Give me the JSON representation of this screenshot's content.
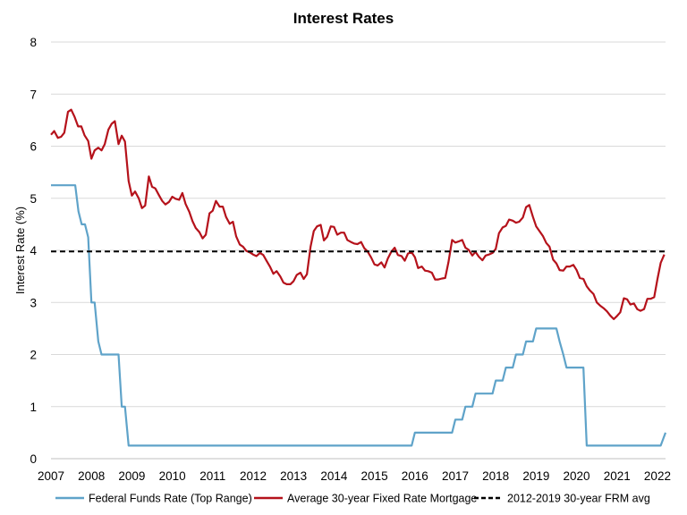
{
  "chart_data": {
    "type": "line",
    "title": "Interest Rates",
    "xlabel": "",
    "ylabel": "Interest Rate (%)",
    "xlim": [
      2007,
      2022.2
    ],
    "ylim": [
      0,
      8
    ],
    "x_ticks": [
      "2007",
      "2008",
      "2009",
      "2010",
      "2011",
      "2012",
      "2013",
      "2014",
      "2015",
      "2016",
      "2017",
      "2018",
      "2019",
      "2020",
      "2021",
      "2022"
    ],
    "y_ticks": [
      "0",
      "1",
      "2",
      "3",
      "4",
      "5",
      "6",
      "7",
      "8"
    ],
    "grid": "horizontal",
    "legend_position": "bottom",
    "series": [
      {
        "name": "Federal Funds Rate (Top Range)",
        "color": "#5fa3c9",
        "style": "solid",
        "x": [
          2007.0,
          2007.6,
          2007.68,
          2007.76,
          2007.84,
          2007.92,
          2008.0,
          2008.08,
          2008.17,
          2008.25,
          2008.33,
          2008.67,
          2008.75,
          2008.83,
          2008.92,
          2009.0,
          2015.92,
          2016.0,
          2016.92,
          2017.0,
          2017.17,
          2017.25,
          2017.42,
          2017.5,
          2017.92,
          2018.0,
          2018.17,
          2018.25,
          2018.42,
          2018.5,
          2018.67,
          2018.75,
          2018.92,
          2019.0,
          2019.5,
          2019.58,
          2019.67,
          2019.75,
          2019.83,
          2020.17,
          2020.25,
          2021.5,
          2022.0,
          2022.08,
          2022.2
        ],
        "values": [
          5.25,
          5.25,
          4.75,
          4.5,
          4.5,
          4.25,
          3.0,
          3.0,
          2.25,
          2.0,
          2.0,
          2.0,
          1.0,
          1.0,
          0.25,
          0.25,
          0.25,
          0.5,
          0.5,
          0.75,
          0.75,
          1.0,
          1.0,
          1.25,
          1.25,
          1.5,
          1.5,
          1.75,
          1.75,
          2.0,
          2.0,
          2.25,
          2.25,
          2.5,
          2.5,
          2.25,
          2.0,
          1.75,
          1.75,
          1.75,
          0.25,
          0.25,
          0.25,
          0.25,
          0.5
        ]
      },
      {
        "name": "Average 30-year Fixed Rate Mortgage",
        "color": "#b5121b",
        "style": "solid",
        "x": [
          2007.0,
          2007.08,
          2007.17,
          2007.25,
          2007.33,
          2007.42,
          2007.5,
          2007.58,
          2007.67,
          2007.75,
          2007.83,
          2007.92,
          2008.0,
          2008.08,
          2008.17,
          2008.25,
          2008.33,
          2008.42,
          2008.5,
          2008.58,
          2008.67,
          2008.75,
          2008.83,
          2008.92,
          2009.0,
          2009.08,
          2009.17,
          2009.25,
          2009.33,
          2009.42,
          2009.5,
          2009.58,
          2009.67,
          2009.75,
          2009.83,
          2009.92,
          2010.0,
          2010.08,
          2010.17,
          2010.25,
          2010.33,
          2010.42,
          2010.5,
          2010.58,
          2010.67,
          2010.75,
          2010.83,
          2010.92,
          2011.0,
          2011.08,
          2011.17,
          2011.25,
          2011.33,
          2011.42,
          2011.5,
          2011.58,
          2011.67,
          2011.75,
          2011.83,
          2011.92,
          2012.0,
          2012.08,
          2012.17,
          2012.25,
          2012.33,
          2012.42,
          2012.5,
          2012.58,
          2012.67,
          2012.75,
          2012.83,
          2012.92,
          2013.0,
          2013.08,
          2013.17,
          2013.25,
          2013.33,
          2013.42,
          2013.5,
          2013.58,
          2013.67,
          2013.75,
          2013.83,
          2013.92,
          2014.0,
          2014.08,
          2014.17,
          2014.25,
          2014.33,
          2014.42,
          2014.5,
          2014.58,
          2014.67,
          2014.75,
          2014.83,
          2014.92,
          2015.0,
          2015.08,
          2015.17,
          2015.25,
          2015.33,
          2015.42,
          2015.5,
          2015.58,
          2015.67,
          2015.75,
          2015.83,
          2015.92,
          2016.0,
          2016.08,
          2016.17,
          2016.25,
          2016.33,
          2016.42,
          2016.5,
          2016.58,
          2016.67,
          2016.75,
          2016.83,
          2016.92,
          2017.0,
          2017.08,
          2017.17,
          2017.25,
          2017.33,
          2017.42,
          2017.5,
          2017.58,
          2017.67,
          2017.75,
          2017.83,
          2017.92,
          2018.0,
          2018.08,
          2018.17,
          2018.25,
          2018.33,
          2018.42,
          2018.5,
          2018.58,
          2018.67,
          2018.75,
          2018.83,
          2018.92,
          2019.0,
          2019.08,
          2019.17,
          2019.25,
          2019.33,
          2019.42,
          2019.5,
          2019.58,
          2019.67,
          2019.75,
          2019.83,
          2019.92,
          2020.0,
          2020.08,
          2020.17,
          2020.25,
          2020.33,
          2020.42,
          2020.5,
          2020.58,
          2020.67,
          2020.75,
          2020.83,
          2020.92,
          2021.0,
          2021.08,
          2021.17,
          2021.25,
          2021.33,
          2021.42,
          2021.5,
          2021.58,
          2021.67,
          2021.75,
          2021.83,
          2021.92,
          2022.0,
          2022.08,
          2022.17
        ],
        "values": [
          6.22,
          6.29,
          6.16,
          6.18,
          6.26,
          6.66,
          6.7,
          6.57,
          6.38,
          6.38,
          6.21,
          6.1,
          5.76,
          5.92,
          5.97,
          5.92,
          6.04,
          6.32,
          6.43,
          6.48,
          6.04,
          6.2,
          6.09,
          5.33,
          5.05,
          5.13,
          5.0,
          4.81,
          4.86,
          5.42,
          5.22,
          5.19,
          5.06,
          4.95,
          4.88,
          4.93,
          5.03,
          4.99,
          4.97,
          5.1,
          4.89,
          4.74,
          4.56,
          4.43,
          4.35,
          4.23,
          4.3,
          4.71,
          4.76,
          4.95,
          4.84,
          4.84,
          4.64,
          4.51,
          4.55,
          4.27,
          4.11,
          4.07,
          3.99,
          3.96,
          3.92,
          3.89,
          3.95,
          3.91,
          3.8,
          3.68,
          3.55,
          3.6,
          3.5,
          3.38,
          3.35,
          3.35,
          3.41,
          3.53,
          3.57,
          3.45,
          3.54,
          4.07,
          4.37,
          4.46,
          4.49,
          4.19,
          4.26,
          4.46,
          4.45,
          4.3,
          4.34,
          4.34,
          4.2,
          4.16,
          4.13,
          4.12,
          4.16,
          4.04,
          3.98,
          3.86,
          3.73,
          3.71,
          3.77,
          3.67,
          3.84,
          3.98,
          4.05,
          3.91,
          3.89,
          3.8,
          3.94,
          3.96,
          3.87,
          3.66,
          3.69,
          3.61,
          3.6,
          3.57,
          3.44,
          3.44,
          3.46,
          3.47,
          3.77,
          4.2,
          4.15,
          4.17,
          4.2,
          4.05,
          4.01,
          3.9,
          3.97,
          3.88,
          3.81,
          3.9,
          3.92,
          3.95,
          4.03,
          4.33,
          4.44,
          4.47,
          4.59,
          4.57,
          4.53,
          4.55,
          4.63,
          4.83,
          4.87,
          4.64,
          4.46,
          4.37,
          4.27,
          4.14,
          4.07,
          3.82,
          3.75,
          3.62,
          3.61,
          3.69,
          3.69,
          3.72,
          3.62,
          3.47,
          3.45,
          3.31,
          3.23,
          3.16,
          3.0,
          2.94,
          2.89,
          2.83,
          2.75,
          2.68,
          2.74,
          2.81,
          3.08,
          3.06,
          2.96,
          2.98,
          2.87,
          2.84,
          2.87,
          3.07,
          3.07,
          3.1,
          3.45,
          3.76,
          3.92
        ]
      },
      {
        "name": "2012-2019 30-year FRM avg",
        "color": "#000000",
        "style": "dashed",
        "x": [
          2007.0,
          2022.2
        ],
        "values": [
          3.98,
          3.98
        ]
      }
    ]
  }
}
